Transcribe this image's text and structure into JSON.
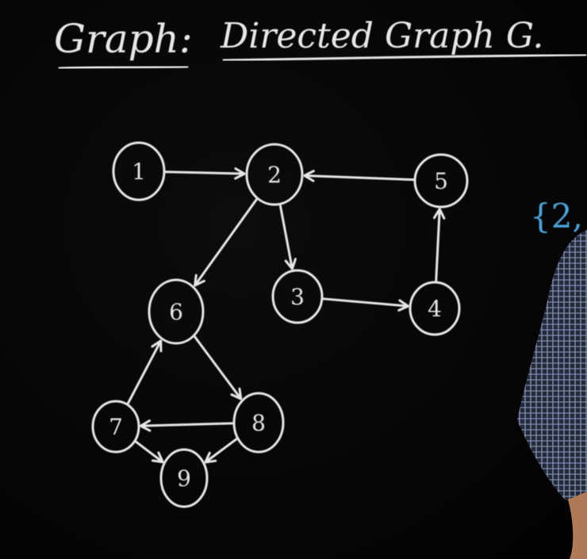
{
  "title": "Graph:",
  "subtitle": "Directed Graph G.",
  "side_note": "{2,",
  "colors": {
    "board": "#050505",
    "chalk": "#e6e6e6",
    "blue_chalk": "#4aa3d8",
    "shirt": "#2a3348"
  },
  "nodes": [
    {
      "id": "n1",
      "label": "1"
    },
    {
      "id": "n2",
      "label": "2"
    },
    {
      "id": "n3",
      "label": "3"
    },
    {
      "id": "n4",
      "label": "4"
    },
    {
      "id": "n5",
      "label": "5"
    },
    {
      "id": "n6",
      "label": "6"
    },
    {
      "id": "n7",
      "label": "7"
    },
    {
      "id": "n8",
      "label": "8"
    },
    {
      "id": "n9",
      "label": "9"
    }
  ],
  "edges": [
    {
      "from": "1",
      "to": "2"
    },
    {
      "from": "5",
      "to": "2"
    },
    {
      "from": "2",
      "to": "6"
    },
    {
      "from": "2",
      "to": "3"
    },
    {
      "from": "3",
      "to": "4"
    },
    {
      "from": "4",
      "to": "5"
    },
    {
      "from": "6",
      "to": "8"
    },
    {
      "from": "7",
      "to": "6"
    },
    {
      "from": "8",
      "to": "7"
    },
    {
      "from": "7",
      "to": "9"
    },
    {
      "from": "8",
      "to": "9"
    }
  ]
}
